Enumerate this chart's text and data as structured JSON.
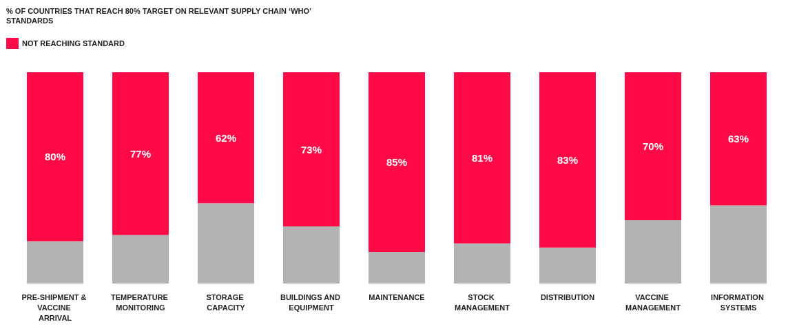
{
  "chart_data": {
    "type": "bar",
    "title": "% OF COUNTRIES THAT REACH 80% TARGET ON RELEVANT SUPPLY CHAIN ‘WHO’ STANDARDS",
    "categories": [
      "PRE-SHIPMENT & VACCINE ARRIVAL",
      "TEMPERATURE MONITORING",
      "STORAGE CAPACITY",
      "BUILDINGS AND EQUIPMENT",
      "MAINTENANCE",
      "STOCK MANAGEMENT",
      "DISTRIBUTION",
      "VACCINE MANAGEMENT",
      "INFORMATION SYSTEMS"
    ],
    "stacked": true,
    "series": [
      {
        "color": "#b3b3b3",
        "values": [
          20,
          23,
          38,
          27,
          15,
          19,
          17,
          30,
          37
        ]
      },
      {
        "name": "NOT REACHING STANDARD",
        "color": "#ff0a47",
        "values": [
          80,
          77,
          62,
          73,
          85,
          81,
          83,
          70,
          63
        ],
        "value_labels": [
          "80%",
          "77%",
          "62%",
          "73%",
          "85%",
          "81%",
          "83%",
          "70%",
          "63%"
        ]
      }
    ],
    "ylim": [
      0,
      100
    ],
    "tick_labels": "x",
    "legend": "top left"
  }
}
